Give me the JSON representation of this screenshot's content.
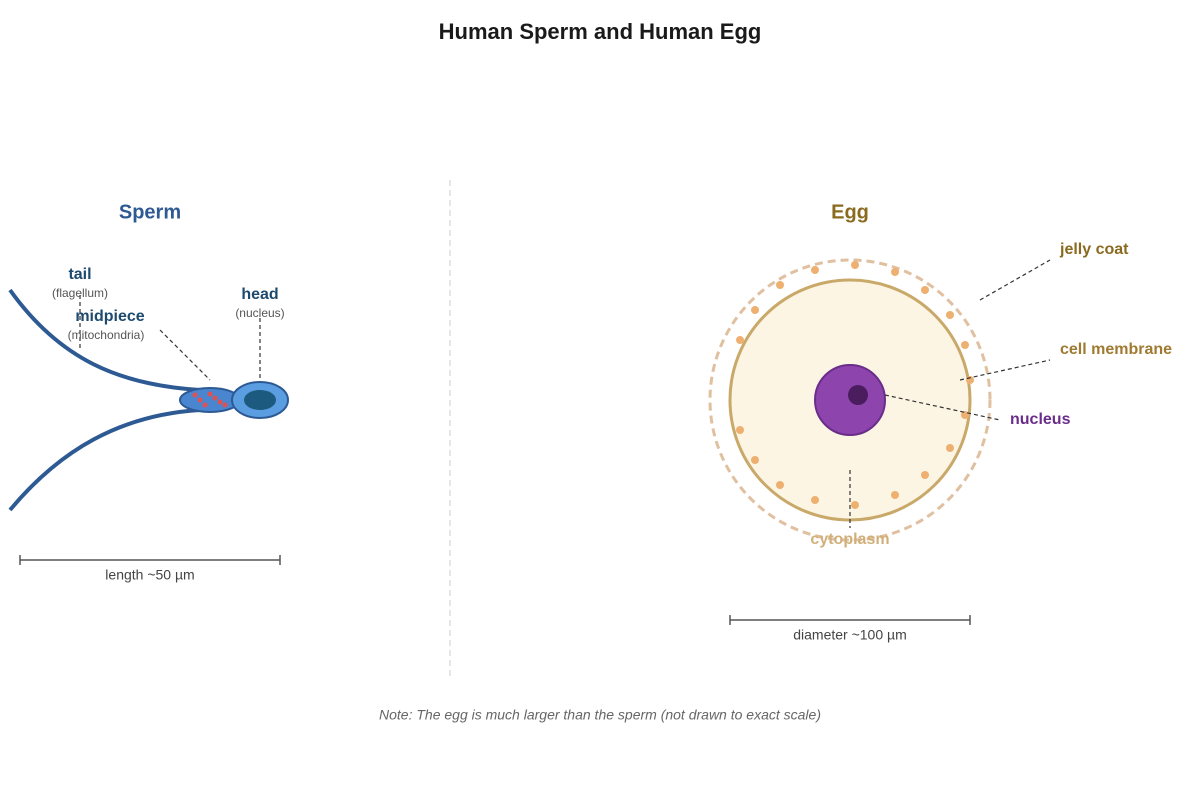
{
  "title": "Human Sperm and Human Egg",
  "sperm": {
    "heading": "Sperm",
    "labels": [
      {
        "name": "tail",
        "detail": "(flagellum)"
      },
      {
        "name": "midpiece",
        "detail": "(mitochondria)"
      },
      {
        "name": "head",
        "detail": "(nucleus)"
      }
    ],
    "scale": "length ~50 µm"
  },
  "egg": {
    "heading": "Egg",
    "labels": [
      "jelly coat",
      "cell membrane",
      "nucleus",
      "cytoplasm"
    ],
    "scale": "diameter ~100 µm"
  },
  "note": "Note: The egg is much larger than the sperm (not drawn to exact scale)"
}
